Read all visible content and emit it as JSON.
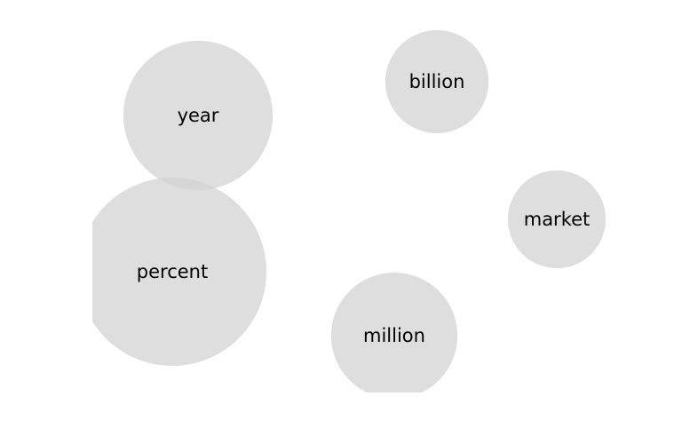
{
  "chart_data": {
    "type": "bubble",
    "title": "",
    "bubble_color": "#d3d3d3",
    "bubble_opacity": 0.75,
    "words": [
      {
        "label": "percent",
        "size": 100
      },
      {
        "label": "year",
        "size": 63
      },
      {
        "label": "million",
        "size": 45
      },
      {
        "label": "billion",
        "size": 30
      },
      {
        "label": "market",
        "size": 27
      }
    ]
  }
}
